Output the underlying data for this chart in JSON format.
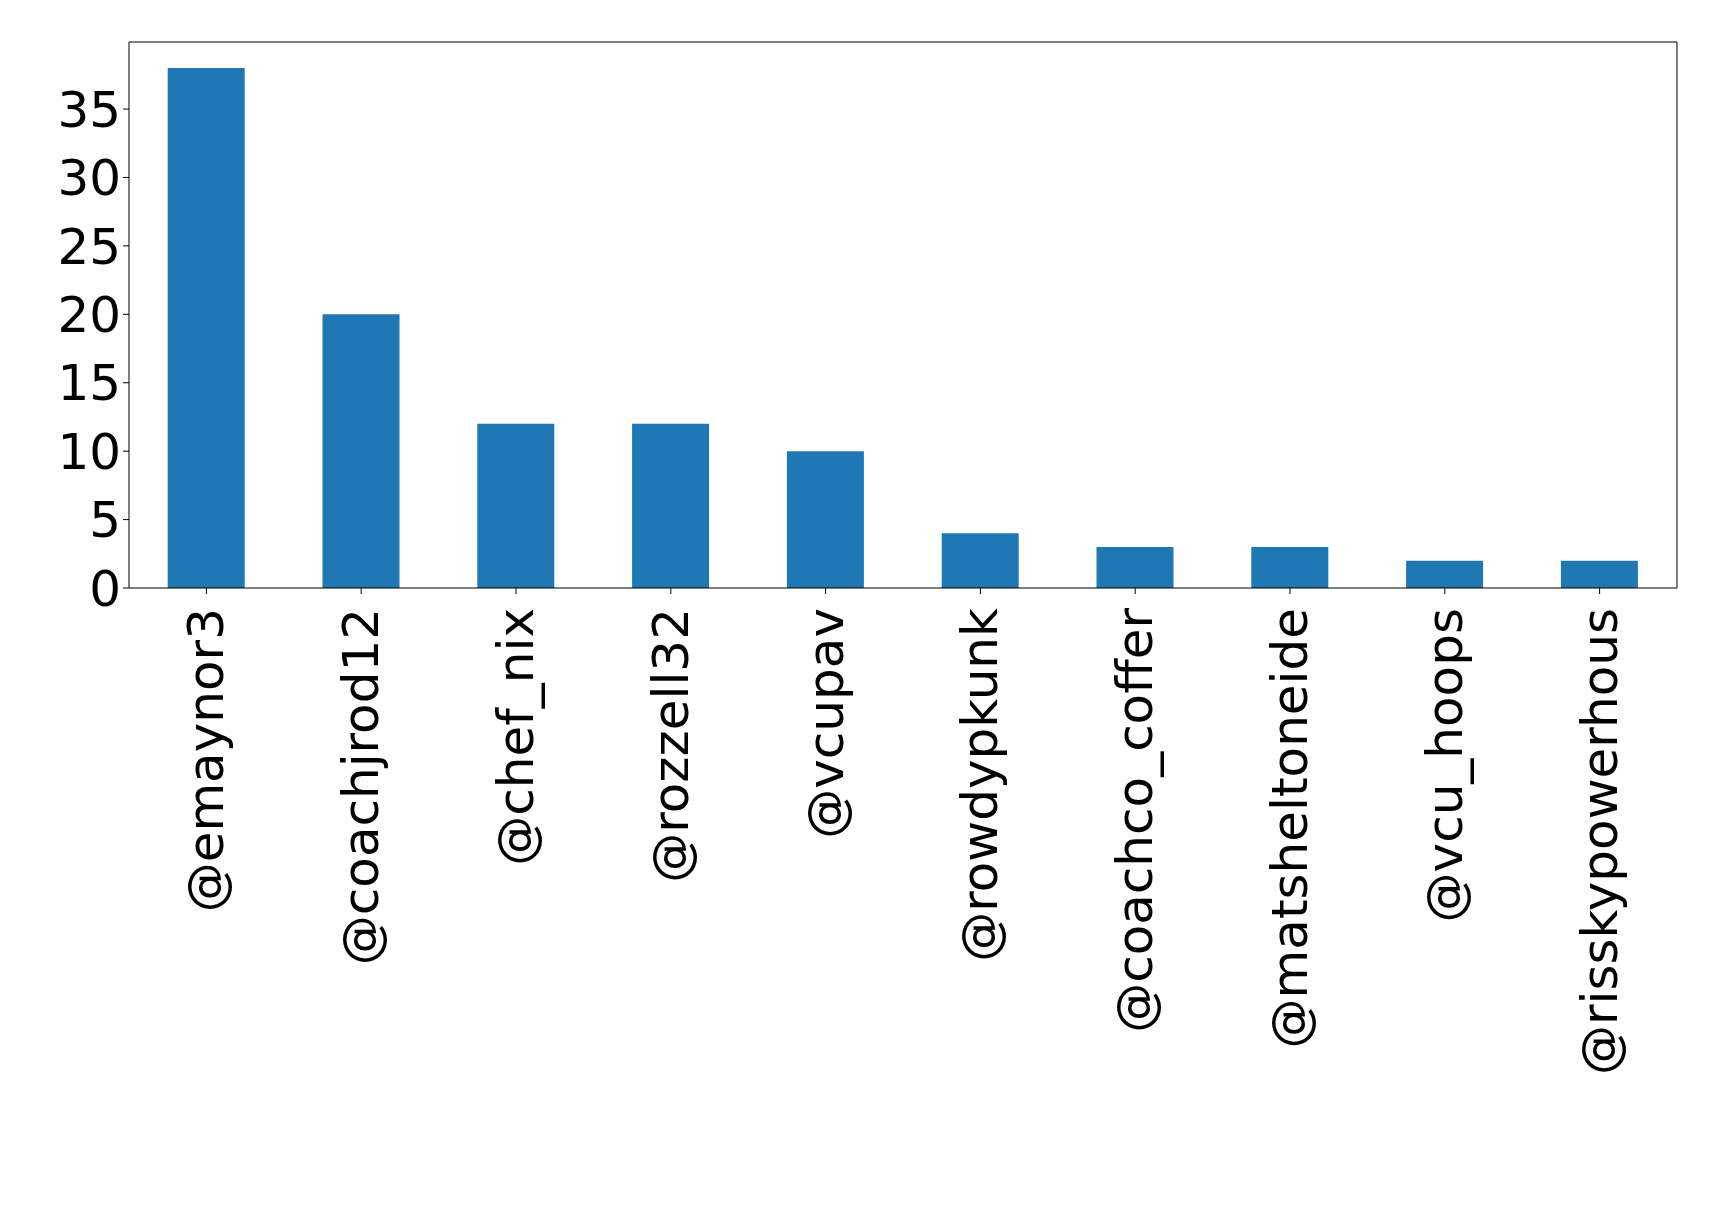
{
  "chart_data": {
    "type": "bar",
    "categories": [
      "@emaynor3",
      "@coachjrod12",
      "@chef_nix",
      "@rozzell32",
      "@vcupav",
      "@rowdypkunk",
      "@coachco_coffer",
      "@matsheltoneide",
      "@vcu_hoops",
      "@risskypowerhous"
    ],
    "values": [
      38,
      20,
      12,
      12,
      10,
      4,
      3,
      3,
      2,
      2
    ],
    "color": "#1f77b4",
    "ylim": [
      0,
      39.9
    ],
    "yticks": [
      0,
      5,
      10,
      15,
      20,
      25,
      30,
      35
    ],
    "grid": false
  }
}
